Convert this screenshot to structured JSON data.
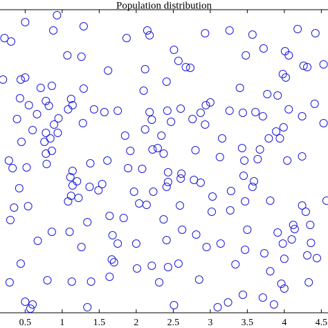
{
  "chart_data": {
    "type": "scatter",
    "title": "Population distribution",
    "color": "#1a1adb",
    "marker": "circle",
    "xlim": [
      0.16,
      4.59
    ],
    "ylim": [
      0,
      4.38
    ],
    "xticks": [
      0.5,
      1,
      1.5,
      2,
      2.5,
      3,
      3.5,
      4,
      4.5
    ],
    "x": [
      0.93,
      0.5,
      0.88,
      1.29,
      0.22,
      0.31,
      1.87,
      2.15,
      2.18,
      3.26,
      2.93,
      3.57,
      4.18,
      4.42,
      1.07,
      1.26,
      2.51,
      2.57,
      2.67,
      3.48,
      3.72,
      4.01,
      4.06,
      4.26,
      4.31,
      4.53,
      1.62,
      2.12,
      2.73,
      0.2,
      0.44,
      0.5,
      2.41,
      3.98,
      4.02,
      0.71,
      0.86,
      1.29,
      2.1,
      3.4,
      3.77,
      3.91,
      0.43,
      0.55,
      0.78,
      1.12,
      1.14,
      0.82,
      1.08,
      1.43,
      1.57,
      1.75,
      2.42,
      2.18,
      2.6,
      2.94,
      3.0,
      2.76,
      3.26,
      3.44,
      3.61,
      3.71,
      4.06,
      4.24,
      4.41,
      0.39,
      0.66,
      0.95,
      1.28,
      0.89,
      2.21,
      2.47,
      2.87,
      4.53,
      0.6,
      0.78,
      0.84,
      0.94,
      2.12,
      2.34,
      2.93,
      3.89,
      3.99,
      3.94,
      1.85,
      3.16,
      3.79,
      0.45,
      0.76,
      1.92,
      2.22,
      2.29,
      2.37,
      2.8,
      3.43,
      3.67,
      3.64,
      3.46,
      0.78,
      0.86,
      0.28,
      0.33,
      0.52,
      0.79,
      4.24,
      1.61,
      1.38,
      3.13,
      4.04,
      1.89,
      1.14,
      2.08,
      2.43,
      2.61,
      2.6,
      2.78,
      3.45,
      3.59,
      1.11,
      1.2,
      1.54,
      1.14,
      1.37,
      2.43,
      2.41,
      3.57,
      2.87,
      3.28,
      1.12,
      1.08,
      1.22,
      1.49,
      0.42,
      1.97,
      2.23,
      3.03,
      0.54,
      0.35,
      2.59,
      2.14,
      2.04,
      3.47,
      3.81,
      4.24,
      4.57,
      1.34,
      1.64,
      1.83,
      2.37,
      3.02,
      3.27,
      4.29,
      0.3,
      4.12,
      4.35,
      0.86,
      1.1,
      2.62,
      2.81,
      1.68,
      3.5,
      3.91,
      4.14,
      3.98,
      2.41,
      2.0,
      0.67,
      1.75,
      1.26,
      2.95,
      3.14,
      4.1,
      4.36,
      3.47,
      3.73,
      4.0,
      4.31,
      4.44,
      1.67,
      1.7,
      2.43,
      2.57,
      0.44,
      2.21,
      3.81,
      2.01,
      3.34,
      2.85,
      1.64,
      1.13,
      1.39,
      0.8,
      0.29,
      2.31,
      3.96,
      4.0,
      4.33,
      3.44,
      3.71,
      3.24,
      0.5,
      0.6,
      0.57,
      1.34,
      3.1,
      2.51,
      3.86
    ],
    "values": [
      4.3,
      4.2,
      4.08,
      4.14,
      3.97,
      3.92,
      3.97,
      4.08,
      4.01,
      4.08,
      4.04,
      4.02,
      4.1,
      4.04,
      3.72,
      3.7,
      3.8,
      3.64,
      3.55,
      3.72,
      3.82,
      3.78,
      3.72,
      3.57,
      3.55,
      3.59,
      3.5,
      3.52,
      3.54,
      3.37,
      3.37,
      3.4,
      3.34,
      3.45,
      3.4,
      3.25,
      3.28,
      3.24,
      3.21,
      3.25,
      3.16,
      3.14,
      3.1,
      3.0,
      3.06,
      3.09,
      3.0,
      2.99,
      2.94,
      2.94,
      2.9,
      2.92,
      2.92,
      2.9,
      2.95,
      3.0,
      3.04,
      2.8,
      2.92,
      2.89,
      2.9,
      2.84,
      2.94,
      2.84,
      3.02,
      2.8,
      2.87,
      2.81,
      2.74,
      2.72,
      2.79,
      2.76,
      2.89,
      2.74,
      2.64,
      2.6,
      2.52,
      2.6,
      2.65,
      2.56,
      2.72,
      2.62,
      2.68,
      2.52,
      2.56,
      2.52,
      2.52,
      2.47,
      2.47,
      2.34,
      2.36,
      2.38,
      2.3,
      2.35,
      2.38,
      2.36,
      2.22,
      2.2,
      2.3,
      2.34,
      2.2,
      2.09,
      2.1,
      2.15,
      2.26,
      2.2,
      2.16,
      2.25,
      2.2,
      2.09,
      2.05,
      2.08,
      2.03,
      2.01,
      1.94,
      1.92,
      1.98,
      1.9,
      1.96,
      1.9,
      1.86,
      1.84,
      1.82,
      1.89,
      1.82,
      1.82,
      1.88,
      1.76,
      1.69,
      1.61,
      1.66,
      1.77,
      1.8,
      1.75,
      1.75,
      1.68,
      1.54,
      1.52,
      1.55,
      1.56,
      1.58,
      1.61,
      1.62,
      1.55,
      1.62,
      1.31,
      1.4,
      1.37,
      1.35,
      1.46,
      1.48,
      1.46,
      1.34,
      1.27,
      1.27,
      1.17,
      1.17,
      1.2,
      1.13,
      1.12,
      1.2,
      1.16,
      1.21,
      1.0,
      1.05,
      1.0,
      1.04,
      1.0,
      0.95,
      0.95,
      1.0,
      1.06,
      1.01,
      0.91,
      0.86,
      0.78,
      0.83,
      0.79,
      0.77,
      0.73,
      0.66,
      0.71,
      0.71,
      0.68,
      0.6,
      0.64,
      0.7,
      0.48,
      0.52,
      0.45,
      0.45,
      0.47,
      0.44,
      0.44,
      0.42,
      0.35,
      0.44,
      0.26,
      0.22,
      0.15,
      0.16,
      0.12,
      0.06,
      0.08,
      0.08,
      0.11,
      0.12
    ]
  }
}
